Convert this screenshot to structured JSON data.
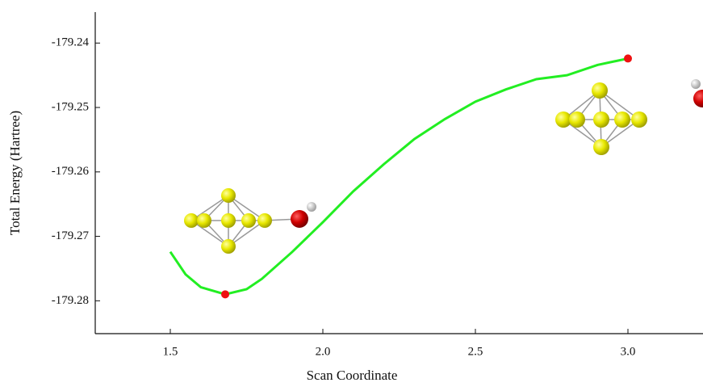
{
  "chart_data": {
    "type": "line",
    "xlabel": "Scan Coordinate",
    "ylabel": "Total Energy (Hartree)",
    "xlim": [
      1.254,
      3.246
    ],
    "ylim": [
      -179.2851,
      -179.2352
    ],
    "xticks": [
      1.5,
      {
        "value": 2,
        "label": "2.0"
      },
      2.5,
      {
        "value": 3,
        "label": "3.0"
      }
    ],
    "yticks": [
      -179.28,
      -179.27,
      -179.26,
      -179.25,
      -179.24
    ],
    "series": [
      {
        "type": "line",
        "color": "#22ee22",
        "x": [
          1.5,
          1.55,
          1.6,
          1.68,
          1.75,
          1.8,
          1.9,
          2.0,
          2.1,
          2.2,
          2.3,
          2.4,
          2.5,
          2.6,
          2.7,
          2.8,
          2.9,
          3.0
        ],
        "values": [
          -179.2724,
          -179.2759,
          -179.2779,
          -179.279,
          -179.2782,
          -179.2766,
          -179.2724,
          -179.2678,
          -179.263,
          -179.2588,
          -179.2549,
          -179.2518,
          -179.2491,
          -179.2472,
          -179.2456,
          -179.245,
          -179.2434,
          -179.2424
        ]
      },
      {
        "type": "scatter",
        "color": "#ee1111",
        "x": [
          1.68,
          3.0
        ],
        "values": [
          -179.279,
          -179.2424
        ]
      }
    ]
  }
}
